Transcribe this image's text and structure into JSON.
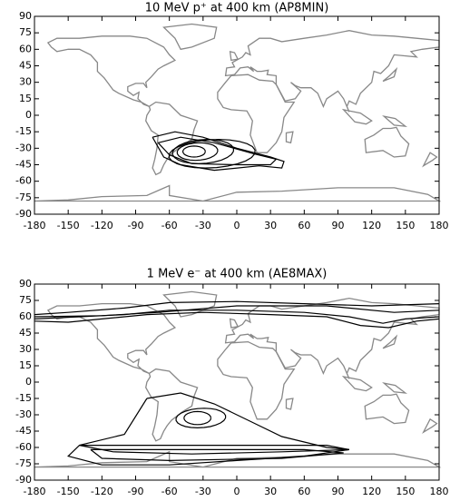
{
  "chart_data": [
    {
      "type": "contour",
      "title": "10 MeV p⁺ at 400 km (AP8MIN)",
      "xlim": [
        -180,
        180
      ],
      "ylim": [
        -90,
        90
      ],
      "xticks": [
        -180,
        -150,
        -120,
        -90,
        -60,
        -30,
        0,
        30,
        60,
        90,
        120,
        150,
        180
      ],
      "yticks": [
        90,
        75,
        60,
        45,
        30,
        15,
        0,
        -15,
        -30,
        -45,
        -60,
        -75,
        -90
      ]
    },
    {
      "type": "contour",
      "title": "1 MeV e⁻ at 400 km (AE8MAX)",
      "xlim": [
        -180,
        180
      ],
      "ylim": [
        -90,
        90
      ],
      "xticks": [
        -180,
        -150,
        -120,
        -90,
        -60,
        -30,
        0,
        30,
        60,
        90,
        120,
        150,
        180
      ],
      "yticks": [
        90,
        75,
        60,
        45,
        30,
        15,
        0,
        -15,
        -30,
        -45,
        -60,
        -75,
        -90
      ]
    }
  ]
}
